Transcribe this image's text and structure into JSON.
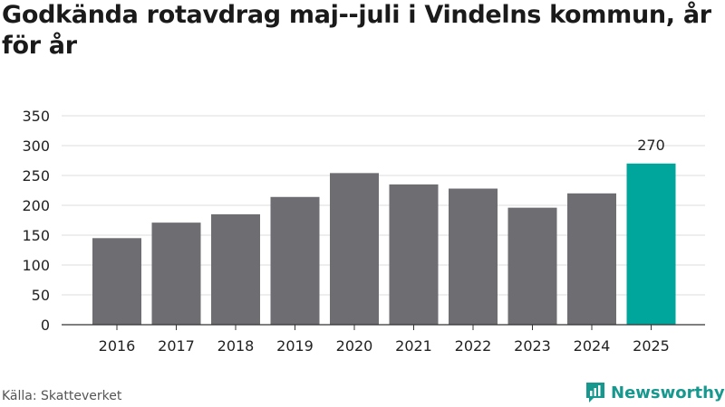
{
  "title": "Godkända rotavdrag maj--juli i Vindelns kommun, år för år",
  "source": "Källa: Skatteverket",
  "brand": {
    "name": "Newsworthy",
    "logo_icon": "newsworthy-logo-icon",
    "color": "#17988e"
  },
  "chart_data": {
    "type": "bar",
    "categories": [
      "2016",
      "2017",
      "2018",
      "2019",
      "2020",
      "2021",
      "2022",
      "2023",
      "2024",
      "2025"
    ],
    "values": [
      145,
      171,
      185,
      214,
      254,
      235,
      228,
      196,
      220,
      270
    ],
    "highlight_index": 9,
    "data_labels": [
      {
        "index": 9,
        "text": "270"
      }
    ],
    "yticks": [
      0,
      50,
      100,
      150,
      200,
      250,
      300,
      350
    ],
    "ylim": [
      0,
      350
    ],
    "xlabel": "",
    "ylabel": "",
    "grid": true,
    "colors": {
      "bar": "#6e6d72",
      "highlight": "#00a59b",
      "grid": "#dddddd",
      "axis": "#333333",
      "text": "#222222"
    }
  }
}
